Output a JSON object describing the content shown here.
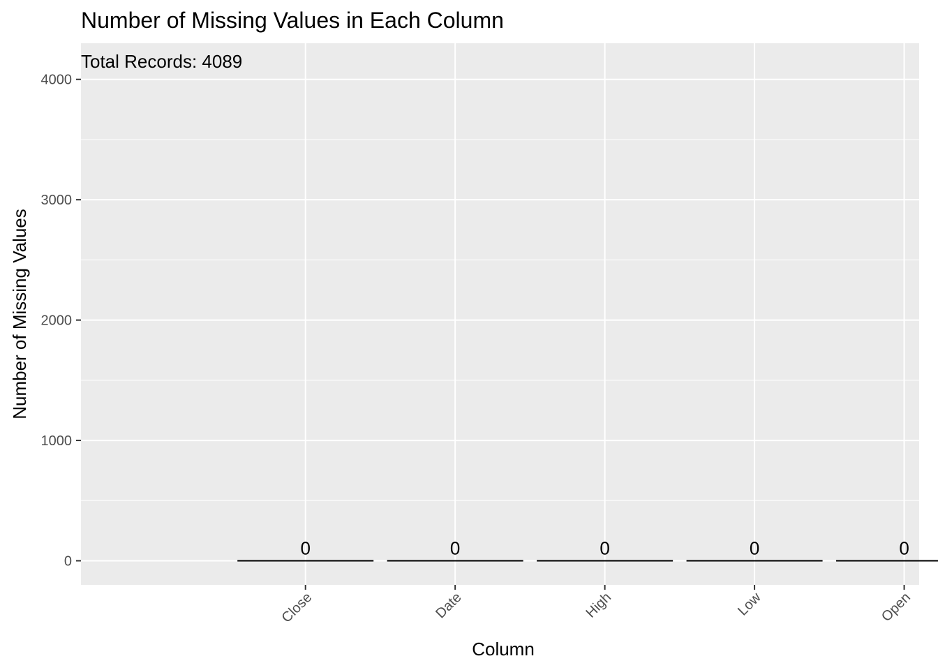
{
  "chart_data": {
    "type": "bar",
    "title": "Number of Missing Values in Each Column",
    "annotation": "Total Records: 4089",
    "xlabel": "Column",
    "ylabel": "Number of Missing Values",
    "categories": [
      "Close",
      "Date",
      "High",
      "Low",
      "Open"
    ],
    "values": [
      0,
      0,
      0,
      0,
      0
    ],
    "data_labels": [
      "0",
      "0",
      "0",
      "0",
      "0"
    ],
    "ylim": [
      -200,
      4300
    ],
    "yticks": [
      0,
      1000,
      2000,
      3000,
      4000
    ],
    "ytick_labels": [
      "0",
      "1000",
      "2000",
      "3000",
      "4000"
    ],
    "grid": true,
    "legend": "none",
    "x_tick_rotation": "45deg",
    "colors": {
      "panel_background": "#ebebeb",
      "grid_line": "#ffffff",
      "bar_outline": "#000000",
      "tick_text": "#4d4d4d",
      "tick_mark": "#333333"
    }
  }
}
